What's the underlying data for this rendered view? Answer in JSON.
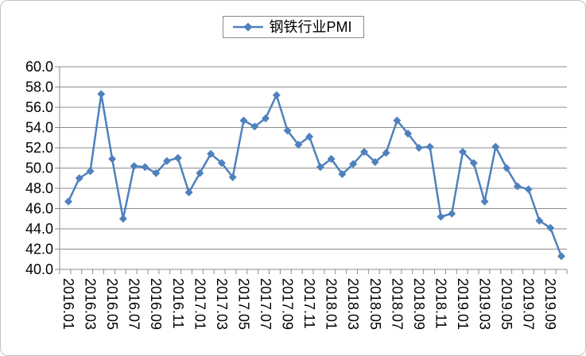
{
  "chart": {
    "legend_label": "钢铁行业PMI",
    "colors": {
      "series": "#4e81bd",
      "grid": "#8c8c8c",
      "axis": "#8c8c8c",
      "tick_text": "#000000",
      "frame_border": "#c3c3c3",
      "legend_border": "#8c8c8c",
      "background": "#ffffff"
    },
    "y_tick_labels": [
      "60.0",
      "58.0",
      "56.0",
      "54.0",
      "52.0",
      "50.0",
      "48.0",
      "46.0",
      "44.0",
      "42.0",
      "40.0"
    ],
    "x_tick_labels_shown": [
      "2016.01",
      "2016.03",
      "2016.05",
      "2016.07",
      "2016.09",
      "2016.11",
      "2017.01",
      "2017.03",
      "2017.05",
      "2017.07",
      "2017.09",
      "2017.11",
      "2018.01",
      "2018.03",
      "2018.05",
      "2018.07",
      "2018.09",
      "2018.11",
      "2019.01",
      "2019.03",
      "2019.05",
      "2019.07",
      "2019.09"
    ]
  },
  "chart_data": {
    "type": "line",
    "title": "",
    "legend": [
      "钢铁行业PMI"
    ],
    "legend_position": "top-center",
    "marker": "diamond",
    "grid": "horizontal",
    "ylim": [
      40,
      60
    ],
    "y_step": 2,
    "x_label_every": 2,
    "x_label_rotation_deg": 90,
    "x": [
      "2016.01",
      "2016.02",
      "2016.03",
      "2016.04",
      "2016.05",
      "2016.06",
      "2016.07",
      "2016.08",
      "2016.09",
      "2016.10",
      "2016.11",
      "2016.12",
      "2017.01",
      "2017.02",
      "2017.03",
      "2017.04",
      "2017.05",
      "2017.06",
      "2017.07",
      "2017.08",
      "2017.09",
      "2017.10",
      "2017.11",
      "2017.12",
      "2018.01",
      "2018.02",
      "2018.03",
      "2018.04",
      "2018.05",
      "2018.06",
      "2018.07",
      "2018.08",
      "2018.09",
      "2018.10",
      "2018.11",
      "2018.12",
      "2019.01",
      "2019.02",
      "2019.03",
      "2019.04",
      "2019.05",
      "2019.06",
      "2019.07",
      "2019.08",
      "2019.09",
      "2019.10"
    ],
    "series": [
      {
        "name": "钢铁行业PMI",
        "values": [
          46.7,
          49.0,
          49.7,
          57.3,
          50.9,
          45.0,
          50.2,
          50.1,
          49.5,
          50.7,
          51.0,
          47.6,
          49.5,
          51.4,
          50.5,
          49.1,
          54.7,
          54.1,
          54.9,
          57.2,
          53.7,
          52.3,
          53.1,
          50.1,
          50.9,
          49.4,
          50.4,
          51.6,
          50.6,
          51.5,
          54.7,
          53.4,
          52.0,
          52.1,
          45.2,
          45.5,
          51.6,
          50.5,
          46.7,
          52.1,
          50.0,
          48.2,
          47.9,
          44.8,
          44.1,
          41.3
        ]
      }
    ]
  }
}
